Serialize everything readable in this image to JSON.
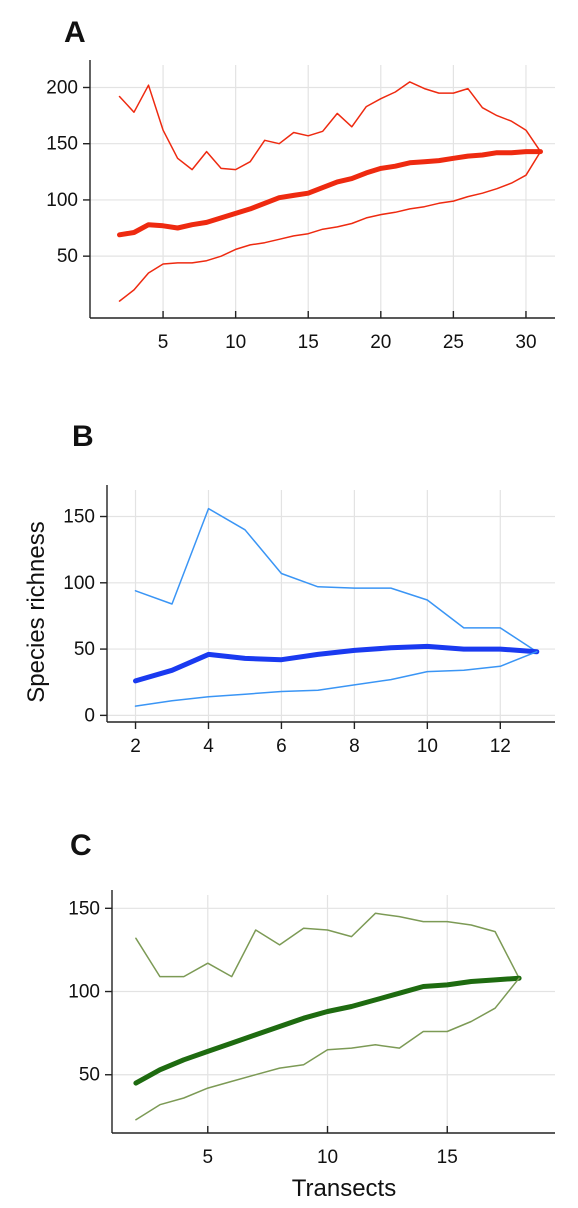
{
  "chart_data": [
    {
      "panel": "A",
      "type": "line",
      "xlabel": "",
      "ylabel": "",
      "xlim": [
        1,
        32
      ],
      "ylim": [
        -5,
        220
      ],
      "xticks": [
        5,
        10,
        15,
        20,
        25,
        30
      ],
      "yticks": [
        50,
        100,
        150,
        200
      ],
      "grid": true,
      "color": "#ee2a10",
      "x": [
        2,
        3,
        4,
        5,
        6,
        7,
        8,
        9,
        10,
        11,
        12,
        13,
        14,
        15,
        16,
        17,
        18,
        19,
        20,
        21,
        22,
        23,
        24,
        25,
        26,
        27,
        28,
        29,
        30,
        31
      ],
      "series": [
        {
          "role": "upper",
          "values": [
            192,
            178,
            202,
            162,
            137,
            127,
            143,
            128,
            127,
            134,
            153,
            150,
            160,
            157,
            161,
            177,
            165,
            183,
            190,
            196,
            205,
            199,
            195,
            195,
            199,
            182,
            175,
            170,
            162,
            143
          ]
        },
        {
          "role": "mean",
          "values": [
            69,
            71,
            78,
            77,
            75,
            78,
            80,
            84,
            88,
            92,
            97,
            102,
            104,
            106,
            111,
            116,
            119,
            124,
            128,
            130,
            133,
            134,
            135,
            137,
            139,
            140,
            142,
            142,
            143,
            143
          ]
        },
        {
          "role": "lower",
          "values": [
            10,
            20,
            35,
            43,
            44,
            44,
            46,
            50,
            56,
            60,
            62,
            65,
            68,
            70,
            74,
            76,
            79,
            84,
            87,
            89,
            92,
            94,
            97,
            99,
            103,
            106,
            110,
            115,
            122,
            143
          ]
        }
      ]
    },
    {
      "panel": "B",
      "type": "line",
      "xlabel": "",
      "ylabel": "Species richness",
      "xlim": [
        1.3,
        13.5
      ],
      "ylim": [
        -5,
        170
      ],
      "xticks": [
        2,
        4,
        6,
        8,
        10,
        12
      ],
      "yticks": [
        0,
        50,
        100,
        150
      ],
      "grid": true,
      "color_mean": "#1a3af0",
      "color_band": "#3a95f5",
      "x": [
        2,
        3,
        4,
        5,
        6,
        7,
        8,
        9,
        10,
        11,
        12,
        13
      ],
      "series": [
        {
          "role": "upper",
          "values": [
            94,
            84,
            156,
            140,
            107,
            97,
            96,
            96,
            87,
            66,
            66,
            48
          ]
        },
        {
          "role": "mean",
          "values": [
            26,
            34,
            46,
            43,
            42,
            46,
            49,
            51,
            52,
            50,
            50,
            48
          ]
        },
        {
          "role": "lower",
          "values": [
            7,
            11,
            14,
            16,
            18,
            19,
            23,
            27,
            33,
            34,
            37,
            48
          ]
        }
      ]
    },
    {
      "panel": "C",
      "type": "line",
      "xlabel": "Transects",
      "ylabel": "",
      "xlim": [
        1,
        19.5
      ],
      "ylim": [
        15,
        158
      ],
      "xticks": [
        5,
        10,
        15
      ],
      "yticks": [
        50,
        100,
        150
      ],
      "grid": true,
      "color_mean": "#1e6b10",
      "color_band": "#7c9a55",
      "x": [
        2,
        3,
        4,
        5,
        6,
        7,
        8,
        9,
        10,
        11,
        12,
        13,
        14,
        15,
        16,
        17,
        18
      ],
      "series": [
        {
          "role": "upper",
          "values": [
            132,
            109,
            109,
            117,
            109,
            137,
            128,
            138,
            137,
            133,
            147,
            145,
            142,
            142,
            140,
            136,
            108
          ]
        },
        {
          "role": "mean",
          "values": [
            45,
            53,
            59,
            64,
            69,
            74,
            79,
            84,
            88,
            91,
            95,
            99,
            103,
            104,
            106,
            107,
            108
          ]
        },
        {
          "role": "lower",
          "values": [
            23,
            32,
            36,
            42,
            46,
            50,
            54,
            56,
            65,
            66,
            68,
            66,
            76,
            76,
            82,
            90,
            108
          ]
        }
      ]
    }
  ],
  "panels": {
    "a_label": "A",
    "b_label": "B",
    "c_label": "C"
  },
  "axis_titles": {
    "y_middle": "Species richness",
    "x_bottom": "Transects"
  }
}
